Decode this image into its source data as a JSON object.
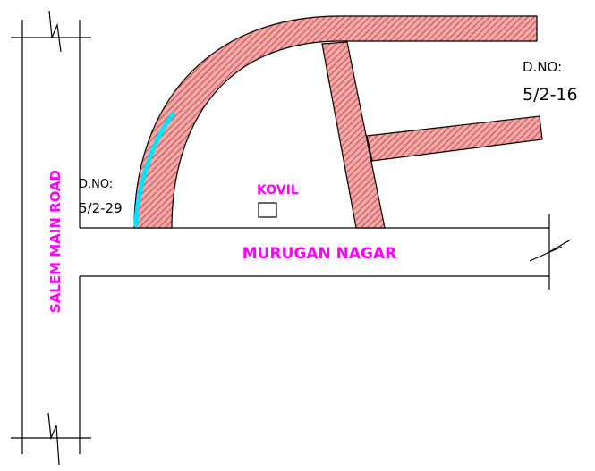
{
  "labels": {
    "main_road": "SALEM MAIN ROAD",
    "street": "MURUGAN NAGAR",
    "temple": "KOVIL",
    "dno_left_prefix": "D.NO:",
    "dno_left_value": "5/2-29",
    "dno_right_prefix": "D.NO:",
    "dno_right_value": "5/2-16"
  },
  "colors": {
    "text_accent": "#ff00ff",
    "wall_fill": "#f0a8a8",
    "wall_hatch": "#c03030",
    "highlight": "#00e5ff",
    "line": "#000000"
  }
}
